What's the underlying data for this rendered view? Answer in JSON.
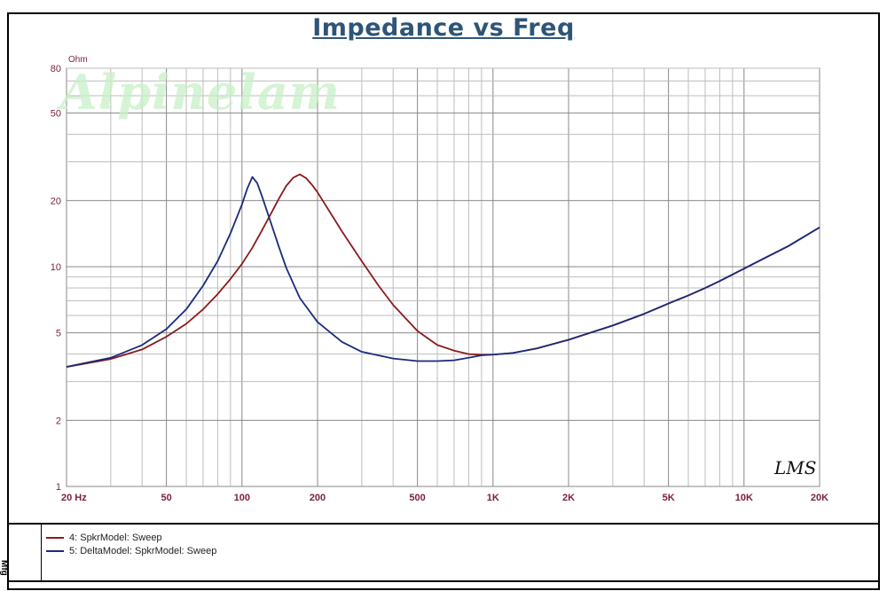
{
  "chart_data": {
    "type": "line",
    "title": "Impedance vs Freq",
    "ylabel": "Ohm",
    "xscale": "log",
    "yscale": "log",
    "xlim": [
      20,
      20000
    ],
    "ylim": [
      1,
      80
    ],
    "grid": true,
    "x_tick_labels": [
      {
        "value": 20,
        "label": "20  Hz"
      },
      {
        "value": 50,
        "label": "50"
      },
      {
        "value": 100,
        "label": "100"
      },
      {
        "value": 200,
        "label": "200"
      },
      {
        "value": 500,
        "label": "500"
      },
      {
        "value": 1000,
        "label": "1K"
      },
      {
        "value": 2000,
        "label": "2K"
      },
      {
        "value": 5000,
        "label": "5K"
      },
      {
        "value": 10000,
        "label": "10K"
      },
      {
        "value": 20000,
        "label": "20K"
      }
    ],
    "y_tick_labels": [
      {
        "value": 1,
        "label": "1"
      },
      {
        "value": 2,
        "label": "2"
      },
      {
        "value": 5,
        "label": "5"
      },
      {
        "value": 10,
        "label": "10"
      },
      {
        "value": 20,
        "label": "20"
      },
      {
        "value": 50,
        "label": "50"
      },
      {
        "value": 80,
        "label": "80"
      }
    ],
    "series": [
      {
        "name": "4: SpkrModel: Sweep",
        "color": "#8b1a1a",
        "points": [
          [
            20,
            3.5
          ],
          [
            30,
            3.8
          ],
          [
            40,
            4.2
          ],
          [
            50,
            4.8
          ],
          [
            60,
            5.5
          ],
          [
            70,
            6.4
          ],
          [
            80,
            7.5
          ],
          [
            90,
            8.8
          ],
          [
            100,
            10.3
          ],
          [
            110,
            12.2
          ],
          [
            120,
            14.6
          ],
          [
            130,
            17.3
          ],
          [
            140,
            20.3
          ],
          [
            150,
            23.3
          ],
          [
            160,
            25.4
          ],
          [
            170,
            26.3
          ],
          [
            180,
            25.3
          ],
          [
            190,
            23.6
          ],
          [
            200,
            21.8
          ],
          [
            250,
            14.5
          ],
          [
            300,
            10.6
          ],
          [
            350,
            8.2
          ],
          [
            400,
            6.7
          ],
          [
            500,
            5.1
          ],
          [
            600,
            4.4
          ],
          [
            700,
            4.15
          ],
          [
            800,
            4.0
          ],
          [
            900,
            3.98
          ],
          [
            1000,
            3.98
          ],
          [
            1200,
            4.05
          ],
          [
            1500,
            4.25
          ],
          [
            2000,
            4.65
          ],
          [
            3000,
            5.4
          ],
          [
            4000,
            6.1
          ],
          [
            5000,
            6.8
          ],
          [
            6000,
            7.4
          ],
          [
            7000,
            8.0
          ],
          [
            8000,
            8.6
          ],
          [
            10000,
            9.8
          ],
          [
            12000,
            10.9
          ],
          [
            15000,
            12.4
          ],
          [
            20000,
            15.1
          ]
        ]
      },
      {
        "name": "5: DeltaModel: SpkrModel: Sweep",
        "color": "#1a2a7a",
        "points": [
          [
            20,
            3.5
          ],
          [
            30,
            3.85
          ],
          [
            40,
            4.4
          ],
          [
            50,
            5.2
          ],
          [
            60,
            6.4
          ],
          [
            70,
            8.2
          ],
          [
            80,
            10.6
          ],
          [
            90,
            14.2
          ],
          [
            100,
            19.2
          ],
          [
            105,
            22.7
          ],
          [
            110,
            25.6
          ],
          [
            115,
            24.0
          ],
          [
            120,
            21.0
          ],
          [
            130,
            16.0
          ],
          [
            140,
            12.4
          ],
          [
            150,
            9.9
          ],
          [
            170,
            7.2
          ],
          [
            200,
            5.6
          ],
          [
            250,
            4.55
          ],
          [
            300,
            4.1
          ],
          [
            400,
            3.82
          ],
          [
            500,
            3.72
          ],
          [
            600,
            3.72
          ],
          [
            700,
            3.75
          ],
          [
            800,
            3.85
          ],
          [
            900,
            3.95
          ],
          [
            1000,
            3.98
          ],
          [
            1200,
            4.05
          ],
          [
            1500,
            4.25
          ],
          [
            2000,
            4.65
          ],
          [
            3000,
            5.4
          ],
          [
            4000,
            6.1
          ],
          [
            5000,
            6.8
          ],
          [
            6000,
            7.4
          ],
          [
            7000,
            8.0
          ],
          [
            8000,
            8.6
          ],
          [
            10000,
            9.8
          ],
          [
            12000,
            10.9
          ],
          [
            15000,
            12.4
          ],
          [
            20000,
            15.1
          ]
        ]
      }
    ]
  },
  "legend": [
    {
      "label": "4: SpkrModel: Sweep",
      "color": "#8b1a1a"
    },
    {
      "label": "5: DeltaModel: SpkrModel: Sweep",
      "color": "#1a2a7a"
    }
  ],
  "watermark_text": "Alpinelam",
  "logo_text": "LMS",
  "side_label": "Mfg"
}
